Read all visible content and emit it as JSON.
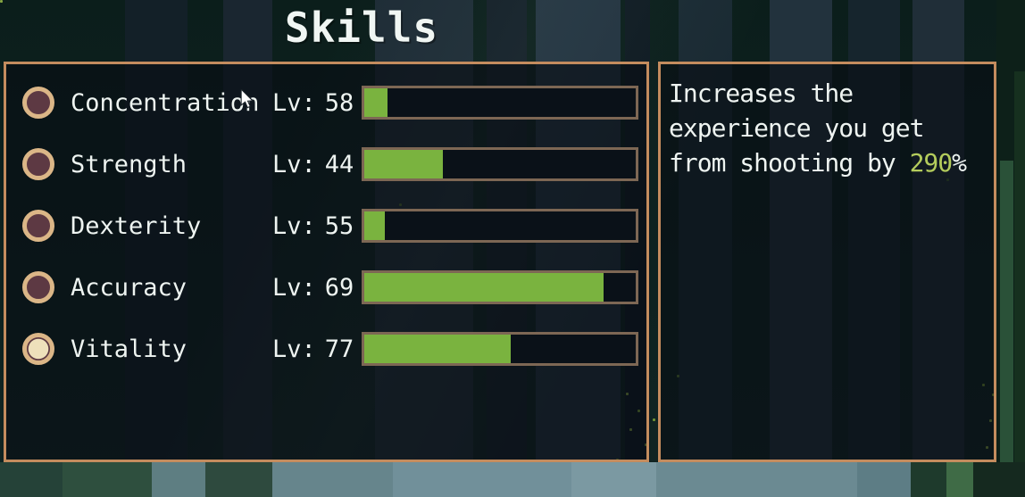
{
  "title": "Skills",
  "colors": {
    "progress_green": "#7ab33f",
    "value_green": "#b4cc5c",
    "panel_border": "#c48c5e",
    "bar_border": "#7d6754",
    "radio_ring": "#dbb687",
    "radio_fill": "#5d3943",
    "radio_selected_center": "#eee0bb",
    "text": "#eef4f1"
  },
  "skills_panel": {
    "rows": [
      {
        "name": "Concentration",
        "level_label": "Lv:",
        "level": "58",
        "progress_pct": 8.5,
        "selected": false
      },
      {
        "name": "Strength",
        "level_label": "Lv:",
        "level": "44",
        "progress_pct": 29,
        "selected": false
      },
      {
        "name": "Dexterity",
        "level_label": "Lv:",
        "level": "55",
        "progress_pct": 7.5,
        "selected": false
      },
      {
        "name": "Accuracy",
        "level_label": "Lv:",
        "level": "69",
        "progress_pct": 88,
        "selected": false
      },
      {
        "name": "Vitality",
        "level_label": "Lv:",
        "level": "77",
        "progress_pct": 54,
        "selected": true
      }
    ]
  },
  "description_panel": {
    "line1": "Increases the",
    "line2": "experience you get",
    "line3_prefix": "from shooting by ",
    "line3_value": "290",
    "line3_suffix": "%"
  }
}
